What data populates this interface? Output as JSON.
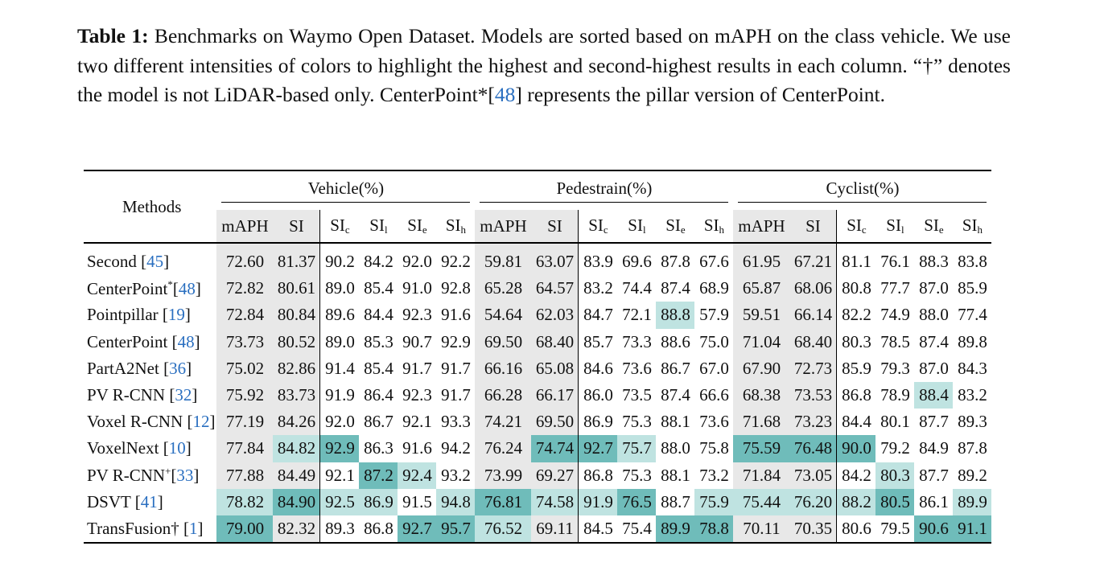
{
  "caption": {
    "label": "Table 1:",
    "text_before_cite": " Benchmarks on Waymo Open Dataset. Models are sorted based on mAPH on the class vehicle. We use two different intensities of colors to highlight the highest and second-highest results in each column. “†” denotes the model is not LiDAR-based only. CenterPoint*[",
    "cite": "48",
    "text_after_cite": "] represents the pillar version of CenterPoint."
  },
  "header": {
    "methods": "Methods",
    "groups": [
      "Vehicle(%)",
      "Pedestrain(%)",
      "Cyclist(%)"
    ],
    "columns": [
      {
        "base": "mAPH",
        "sub": ""
      },
      {
        "base": "SI",
        "sub": ""
      },
      {
        "base": "SI",
        "sub": "c"
      },
      {
        "base": "SI",
        "sub": "l"
      },
      {
        "base": "SI",
        "sub": "e"
      },
      {
        "base": "SI",
        "sub": "h"
      }
    ]
  },
  "rows": [
    {
      "name": "Second",
      "sup": "",
      "cite": "45",
      "values": [
        "72.60",
        "81.37",
        "90.2",
        "84.2",
        "92.0",
        "92.2",
        "59.81",
        "63.07",
        "83.9",
        "69.6",
        "87.8",
        "67.6",
        "61.95",
        "67.21",
        "81.1",
        "76.1",
        "88.3",
        "83.8"
      ]
    },
    {
      "name": "CenterPoint",
      "sup": "*",
      "cite": "48",
      "values": [
        "72.82",
        "80.61",
        "89.0",
        "85.4",
        "91.0",
        "92.8",
        "65.28",
        "64.57",
        "83.2",
        "74.4",
        "87.4",
        "68.9",
        "65.87",
        "68.06",
        "80.8",
        "77.7",
        "87.0",
        "85.9"
      ]
    },
    {
      "name": "Pointpillar",
      "sup": "",
      "cite": "19",
      "values": [
        "72.84",
        "80.84",
        "89.6",
        "84.4",
        "92.3",
        "91.6",
        "54.64",
        "62.03",
        "84.7",
        "72.1",
        "88.8",
        "57.9",
        "59.51",
        "66.14",
        "82.2",
        "74.9",
        "88.0",
        "77.4"
      ]
    },
    {
      "name": "CenterPoint",
      "sup": "",
      "cite": "48",
      "values": [
        "73.73",
        "80.52",
        "89.0",
        "85.3",
        "90.7",
        "92.9",
        "69.50",
        "68.40",
        "85.7",
        "73.3",
        "88.6",
        "75.0",
        "71.04",
        "68.40",
        "80.3",
        "78.5",
        "87.4",
        "89.8"
      ]
    },
    {
      "name": "PartA2Net",
      "sup": "",
      "cite": "36",
      "values": [
        "75.02",
        "82.86",
        "91.4",
        "85.4",
        "91.7",
        "91.7",
        "66.16",
        "65.08",
        "84.6",
        "73.6",
        "86.7",
        "67.0",
        "67.90",
        "72.73",
        "85.9",
        "79.3",
        "87.0",
        "84.3"
      ]
    },
    {
      "name": "PV R-CNN",
      "sup": "",
      "cite": "32",
      "values": [
        "75.92",
        "83.73",
        "91.9",
        "86.4",
        "92.3",
        "91.7",
        "66.28",
        "66.17",
        "86.0",
        "73.5",
        "87.4",
        "66.6",
        "68.38",
        "73.53",
        "86.8",
        "78.9",
        "88.4",
        "83.2"
      ]
    },
    {
      "name": "Voxel R-CNN",
      "sup": "",
      "cite": "12",
      "values": [
        "77.19",
        "84.26",
        "92.0",
        "86.7",
        "92.1",
        "93.3",
        "74.21",
        "69.50",
        "86.9",
        "75.3",
        "88.1",
        "73.6",
        "71.68",
        "73.23",
        "84.4",
        "80.1",
        "87.7",
        "89.3"
      ]
    },
    {
      "name": "VoxelNext",
      "sup": "",
      "cite": "10",
      "values": [
        "77.84",
        "84.82",
        "92.9",
        "86.3",
        "91.6",
        "94.2",
        "76.24",
        "74.74",
        "92.7",
        "75.7",
        "88.0",
        "75.8",
        "75.59",
        "76.48",
        "90.0",
        "79.2",
        "84.9",
        "87.8"
      ]
    },
    {
      "name": "PV R-CNN",
      "sup": "+",
      "cite": "33",
      "values": [
        "77.88",
        "84.49",
        "92.1",
        "87.2",
        "92.4",
        "93.2",
        "73.99",
        "69.27",
        "86.8",
        "75.3",
        "88.1",
        "73.2",
        "71.84",
        "73.05",
        "84.2",
        "80.3",
        "87.7",
        "89.2"
      ]
    },
    {
      "name": "DSVT",
      "sup": "",
      "cite": "41",
      "values": [
        "78.82",
        "84.90",
        "92.5",
        "86.9",
        "91.5",
        "94.8",
        "76.81",
        "74.58",
        "91.9",
        "76.5",
        "88.7",
        "75.9",
        "75.44",
        "76.20",
        "88.2",
        "80.5",
        "86.1",
        "89.9"
      ]
    },
    {
      "name": "TransFusion†",
      "sup": "",
      "cite": "1",
      "values": [
        "79.00",
        "82.32",
        "89.3",
        "86.8",
        "92.7",
        "95.7",
        "76.52",
        "69.11",
        "84.5",
        "75.4",
        "89.9",
        "78.8",
        "70.11",
        "70.35",
        "80.6",
        "79.5",
        "90.6",
        "91.1"
      ]
    }
  ],
  "highlights": {
    "best": [
      [
        10,
        0
      ],
      [
        9,
        1
      ],
      [
        7,
        2
      ],
      [
        8,
        3
      ],
      [
        10,
        4
      ],
      [
        10,
        5
      ],
      [
        9,
        6
      ],
      [
        7,
        7
      ],
      [
        7,
        8
      ],
      [
        9,
        9
      ],
      [
        10,
        10
      ],
      [
        10,
        11
      ],
      [
        7,
        12
      ],
      [
        7,
        13
      ],
      [
        7,
        14
      ],
      [
        9,
        15
      ],
      [
        10,
        16
      ],
      [
        10,
        17
      ]
    ],
    "second": [
      [
        9,
        0
      ],
      [
        7,
        1
      ],
      [
        9,
        2
      ],
      [
        9,
        3
      ],
      [
        8,
        4
      ],
      [
        9,
        5
      ],
      [
        10,
        6
      ],
      [
        9,
        7
      ],
      [
        9,
        8
      ],
      [
        7,
        9
      ],
      [
        2,
        10
      ],
      [
        9,
        11
      ],
      [
        9,
        12
      ],
      [
        9,
        13
      ],
      [
        9,
        14
      ],
      [
        8,
        15
      ],
      [
        5,
        16
      ],
      [
        9,
        17
      ]
    ]
  },
  "colors": {
    "best": "#6fbcba",
    "second": "#bfe3e1",
    "gray": "#e8e8e8",
    "cite": "#2a6fc0"
  }
}
